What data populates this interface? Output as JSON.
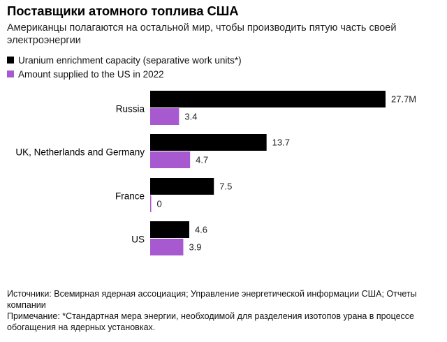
{
  "header": {
    "title": "Поставщики атомного топлива США",
    "subtitle": "Американцы полагаются на остальной мир, чтобы производить пятую часть своей электроэнергии"
  },
  "legend": [
    {
      "label": "Uranium enrichment capacity (separative work units*)",
      "color": "#000000"
    },
    {
      "label": "Amount supplied to the US in 2022",
      "color": "#a75ad0"
    }
  ],
  "chart_data": {
    "type": "bar",
    "orientation": "horizontal",
    "title": "Поставщики атомного топлива США",
    "categories": [
      "Russia",
      "UK, Netherlands and Germany",
      "France",
      "US"
    ],
    "series": [
      {
        "name": "Uranium enrichment capacity (separative work units*)",
        "color": "#000000",
        "values": [
          27.7,
          13.7,
          7.5,
          4.6
        ],
        "labels": [
          "27.7M",
          "13.7",
          "7.5",
          "4.6"
        ]
      },
      {
        "name": "Amount supplied to the US in 2022",
        "color": "#a75ad0",
        "values": [
          3.4,
          4.7,
          0,
          3.9
        ],
        "labels": [
          "3.4",
          "4.7",
          "0",
          "3.9"
        ]
      }
    ],
    "xlim": [
      0,
      27.7
    ],
    "grid": false,
    "legend_position": "top-left"
  },
  "footer": {
    "sources": "Источники: Всемирная ядерная ассоциация; Управление энергетической информации США; Отчеты компании",
    "note": "Примечание: *Стандартная мера энергии, необходимой для разделения изотопов урана в процессе обогащения на ядерных установках."
  }
}
